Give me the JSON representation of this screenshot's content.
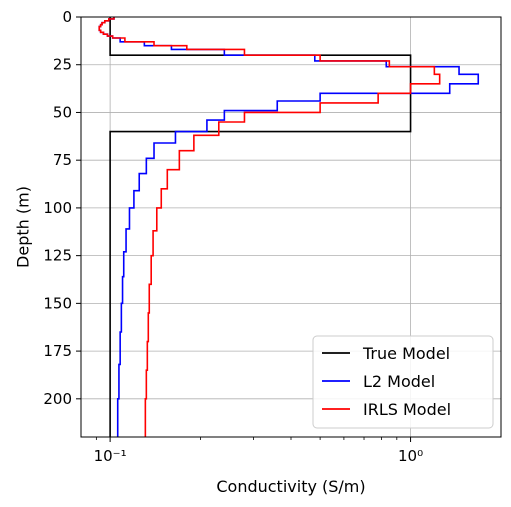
{
  "chart_data": {
    "type": "line",
    "xscale": "log",
    "xlim": [
      0.08,
      2.0
    ],
    "ylim": [
      220,
      0
    ],
    "xlabel": "Conductivity (S/m)",
    "ylabel": "Depth (m)",
    "grid": true,
    "legend_position": "bottom-right",
    "x_ticks": [
      {
        "value": 0.1,
        "label": "10⁻¹"
      },
      {
        "value": 1.0,
        "label": "10⁰"
      }
    ],
    "y_ticks": [
      0,
      25,
      50,
      75,
      100,
      125,
      150,
      175,
      200
    ],
    "series": [
      {
        "name": "True Model",
        "color": "#000000",
        "step": true,
        "depth_edges": [
          0,
          20,
          60,
          220
        ],
        "values": [
          0.1,
          1.0,
          0.1
        ]
      },
      {
        "name": "L2 Model",
        "color": "#0000ff",
        "step": true,
        "depth_edges": [
          0,
          1,
          2,
          3,
          4,
          5,
          6,
          7,
          8,
          9,
          10,
          11,
          13,
          15,
          17,
          20,
          23,
          26,
          30,
          35,
          40,
          44,
          49,
          54,
          60,
          66,
          74,
          82,
          91,
          100,
          111,
          123,
          136,
          150,
          165,
          182,
          200,
          220
        ],
        "values": [
          0.103,
          0.099,
          0.096,
          0.094,
          0.093,
          0.092,
          0.092,
          0.093,
          0.095,
          0.098,
          0.102,
          0.108,
          0.13,
          0.16,
          0.24,
          0.48,
          0.83,
          1.45,
          1.68,
          1.35,
          0.5,
          0.36,
          0.24,
          0.21,
          0.165,
          0.14,
          0.132,
          0.125,
          0.12,
          0.116,
          0.113,
          0.111,
          0.11,
          0.109,
          0.108,
          0.107,
          0.106
        ]
      },
      {
        "name": "IRLS Model",
        "color": "#ff0000",
        "step": true,
        "depth_edges": [
          0,
          1,
          2,
          3,
          4,
          5,
          6,
          7,
          8,
          9,
          10,
          11,
          13,
          15,
          17,
          20,
          23,
          26,
          30,
          35,
          40,
          45,
          50,
          55,
          62,
          70,
          80,
          90,
          100,
          112,
          125,
          140,
          155,
          170,
          185,
          200,
          220
        ],
        "values": [
          0.103,
          0.099,
          0.096,
          0.094,
          0.093,
          0.092,
          0.092,
          0.093,
          0.095,
          0.098,
          0.102,
          0.112,
          0.14,
          0.18,
          0.28,
          0.5,
          0.85,
          1.2,
          1.25,
          1.0,
          0.78,
          0.5,
          0.28,
          0.23,
          0.19,
          0.17,
          0.155,
          0.148,
          0.143,
          0.139,
          0.137,
          0.135,
          0.134,
          0.133,
          0.132,
          0.131
        ]
      }
    ]
  }
}
